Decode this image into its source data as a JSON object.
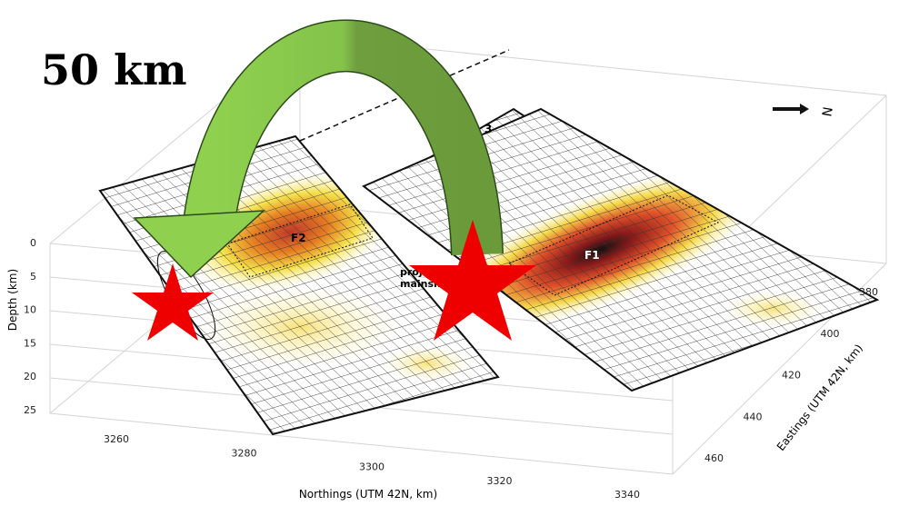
{
  "figure": {
    "scale_label": "50 km",
    "fault_labels": [
      "F1",
      "F2",
      "3"
    ],
    "mainshock_label": [
      "proj",
      "mainsh"
    ],
    "north_label": "N",
    "depth_axis": {
      "label": "Depth (km)",
      "ticks": [
        0,
        5,
        10,
        15,
        20,
        25
      ]
    },
    "northings_axis": {
      "label": "Northings (UTM 42N, km)",
      "ticks": [
        3260,
        3280,
        3300,
        3320,
        3340
      ]
    },
    "eastings_axis": {
      "label": "Eastings (UTM 42N, km)",
      "ticks": [
        380,
        400,
        420,
        440,
        460
      ]
    }
  }
}
